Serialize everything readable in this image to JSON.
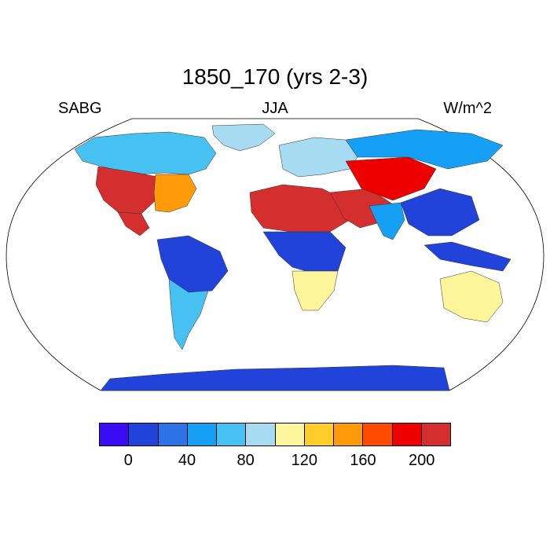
{
  "title": "1850_170 (yrs 2-3)",
  "left_label": "SABG",
  "center_label": "JJA",
  "right_label": "W/m^2",
  "colorbar": {
    "colors": [
      "#3a0cf5",
      "#2243d9",
      "#2d73e6",
      "#16a0f5",
      "#47c0f2",
      "#a6dbf1",
      "#fff59b",
      "#ffcd29",
      "#ff9a08",
      "#ff4a00",
      "#ed0000",
      "#d42e2e"
    ],
    "tick_labels": [
      "0",
      "40",
      "80",
      "120",
      "160",
      "200"
    ],
    "levels": [
      0,
      20,
      40,
      60,
      80,
      100,
      120,
      140,
      160,
      180,
      200
    ]
  },
  "regions": [
    {
      "name": "Antarctica",
      "value": 10
    },
    {
      "name": "Greenland",
      "value": 80
    },
    {
      "name": "Canada",
      "value": 60
    },
    {
      "name": "Western United States",
      "value": 200
    },
    {
      "name": "Eastern United States",
      "value": 140
    },
    {
      "name": "Amazon",
      "value": 10
    },
    {
      "name": "Southern South America",
      "value": 70
    },
    {
      "name": "Sahara",
      "value": 200
    },
    {
      "name": "Arabian Peninsula",
      "value": 210
    },
    {
      "name": "Central Africa",
      "value": 10
    },
    {
      "name": "Southern Africa",
      "value": 100
    },
    {
      "name": "Europe",
      "value": 80
    },
    {
      "name": "Central Asia",
      "value": 190
    },
    {
      "name": "Siberia",
      "value": 50
    },
    {
      "name": "India",
      "value": 40
    },
    {
      "name": "Southeast Asia",
      "value": 10
    },
    {
      "name": "Australia",
      "value": 110
    }
  ]
}
